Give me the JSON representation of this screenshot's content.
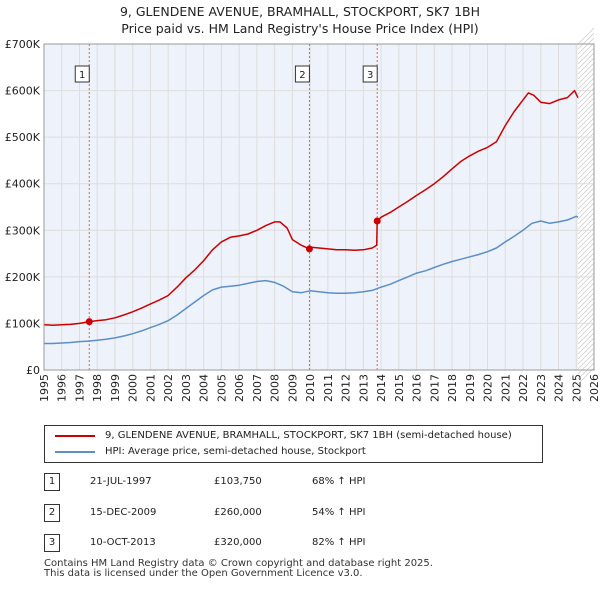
{
  "title_line1": "9, GLENDENE AVENUE, BRAMHALL, STOCKPORT, SK7 1BH",
  "title_line2": "Price paid vs. HM Land Registry's House Price Index (HPI)",
  "colors": {
    "property": "#cc0000",
    "hpi": "#5b8fc7",
    "grid": "#dddddd",
    "plot_bg": "#eef2fa",
    "marker_line": "#e06060"
  },
  "legend": {
    "property_label": "9, GLENDENE AVENUE, BRAMHALL, STOCKPORT, SK7 1BH (semi-detached house)",
    "hpi_label": "HPI: Average price, semi-detached house, Stockport"
  },
  "transactions": [
    {
      "num": "1",
      "date": "21-JUL-1997",
      "price": "£103,750",
      "hpi": "68% ↑ HPI"
    },
    {
      "num": "2",
      "date": "15-DEC-2009",
      "price": "£260,000",
      "hpi": "54% ↑ HPI"
    },
    {
      "num": "3",
      "date": "10-OCT-2013",
      "price": "£320,000",
      "hpi": "82% ↑ HPI"
    }
  ],
  "footer_line1": "Contains HM Land Registry data © Crown copyright and database right 2025.",
  "footer_line2": "This data is licensed under the Open Government Licence v3.0.",
  "chart_data": {
    "type": "line",
    "title": "9, GLENDENE AVENUE, BRAMHALL, STOCKPORT, SK7 1BH — Price paid vs. HM Land Registry's House Price Index (HPI)",
    "xlabel": "",
    "ylabel": "",
    "xlim": [
      1995,
      2026
    ],
    "ylim": [
      0,
      700000
    ],
    "x_ticks": [
      1995,
      1996,
      1997,
      1998,
      1999,
      2000,
      2001,
      2002,
      2003,
      2004,
      2005,
      2006,
      2007,
      2008,
      2009,
      2010,
      2011,
      2012,
      2013,
      2014,
      2015,
      2016,
      2017,
      2018,
      2019,
      2020,
      2021,
      2022,
      2023,
      2024,
      2025,
      2026
    ],
    "y_ticks": [
      0,
      100000,
      200000,
      300000,
      400000,
      500000,
      600000,
      700000
    ],
    "y_tick_labels": [
      "£0",
      "£100K",
      "£200K",
      "£300K",
      "£400K",
      "£500K",
      "£600K",
      "£700K"
    ],
    "grid": true,
    "future_shade_from": 2025.1,
    "sale_markers": [
      {
        "label": "1",
        "x": 1997.55,
        "y": 103750
      },
      {
        "label": "2",
        "x": 2009.96,
        "y": 260000
      },
      {
        "label": "3",
        "x": 2013.78,
        "y": 320000
      }
    ],
    "series": [
      {
        "name": "9, GLENDENE AVENUE, BRAMHALL, STOCKPORT, SK7 1BH (semi-detached house)",
        "x": [
          1995,
          1995.5,
          1996,
          1996.5,
          1997,
          1997.55,
          1998,
          1998.5,
          1999,
          1999.5,
          2000,
          2000.5,
          2001,
          2001.5,
          2002,
          2002.5,
          2003,
          2003.5,
          2004,
          2004.5,
          2005,
          2005.5,
          2006,
          2006.5,
          2007,
          2007.5,
          2008,
          2008.3,
          2008.7,
          2009,
          2009.5,
          2009.96,
          2010,
          2010.5,
          2011,
          2011.5,
          2012,
          2012.5,
          2013,
          2013.5,
          2013.75,
          2013.78,
          2014,
          2014.5,
          2015,
          2015.5,
          2016,
          2016.5,
          2017,
          2017.5,
          2018,
          2018.5,
          2019,
          2019.5,
          2020,
          2020.5,
          2021,
          2021.5,
          2022,
          2022.3,
          2022.6,
          2023,
          2023.5,
          2024,
          2024.5,
          2024.9,
          2025,
          2025.1
        ],
        "values": [
          97000,
          96000,
          97000,
          98000,
          100000,
          103750,
          106000,
          108000,
          112000,
          118000,
          125000,
          133000,
          142000,
          150000,
          160000,
          178000,
          198000,
          215000,
          235000,
          258000,
          275000,
          285000,
          288000,
          292000,
          300000,
          310000,
          318000,
          318000,
          305000,
          280000,
          268000,
          260000,
          264000,
          262000,
          260000,
          258000,
          258000,
          257000,
          258000,
          262000,
          268000,
          320000,
          328000,
          338000,
          350000,
          362000,
          375000,
          387000,
          400000,
          415000,
          432000,
          448000,
          460000,
          470000,
          478000,
          490000,
          525000,
          555000,
          580000,
          595000,
          590000,
          575000,
          572000,
          580000,
          585000,
          600000,
          592000,
          585000
        ]
      },
      {
        "name": "HPI: Average price, semi-detached house, Stockport",
        "x": [
          1995,
          1995.5,
          1996,
          1996.5,
          1997,
          1997.5,
          1998,
          1998.5,
          1999,
          1999.5,
          2000,
          2000.5,
          2001,
          2001.5,
          2002,
          2002.5,
          2003,
          2003.5,
          2004,
          2004.5,
          2005,
          2005.5,
          2006,
          2006.5,
          2007,
          2007.5,
          2008,
          2008.5,
          2009,
          2009.5,
          2010,
          2010.5,
          2011,
          2011.5,
          2012,
          2012.5,
          2013,
          2013.5,
          2014,
          2014.5,
          2015,
          2015.5,
          2016,
          2016.5,
          2017,
          2017.5,
          2018,
          2018.5,
          2019,
          2019.5,
          2020,
          2020.5,
          2021,
          2021.5,
          2022,
          2022.5,
          2023,
          2023.5,
          2024,
          2024.5,
          2025,
          2025.1
        ],
        "values": [
          57000,
          57000,
          58000,
          59000,
          61000,
          62000,
          64000,
          66000,
          69000,
          73000,
          78000,
          84000,
          91000,
          98000,
          106000,
          118000,
          132000,
          146000,
          160000,
          172000,
          178000,
          180000,
          182000,
          186000,
          190000,
          192000,
          188000,
          180000,
          168000,
          166000,
          170000,
          168000,
          166000,
          165000,
          165000,
          166000,
          168000,
          171000,
          178000,
          184000,
          192000,
          200000,
          208000,
          213000,
          220000,
          227000,
          233000,
          238000,
          243000,
          248000,
          254000,
          262000,
          275000,
          287000,
          300000,
          315000,
          320000,
          315000,
          318000,
          322000,
          330000,
          328000
        ]
      }
    ]
  }
}
